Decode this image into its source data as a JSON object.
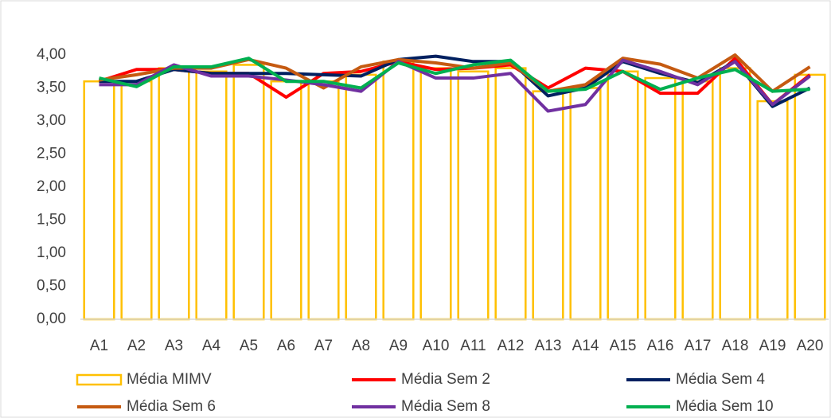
{
  "chart_data": {
    "type": "bar_line",
    "categories": [
      "A1",
      "A2",
      "A3",
      "A4",
      "A5",
      "A6",
      "A7",
      "A8",
      "A9",
      "A10",
      "A11",
      "A12",
      "A13",
      "A14",
      "A15",
      "A16",
      "A17",
      "A18",
      "A19",
      "A20"
    ],
    "bar_series": {
      "name": "Média MIMV",
      "color": "#FFC000",
      "values": [
        3.6,
        3.6,
        3.8,
        3.75,
        3.85,
        3.6,
        3.6,
        3.7,
        3.9,
        3.8,
        3.75,
        3.8,
        3.45,
        3.5,
        3.75,
        3.65,
        3.6,
        3.8,
        3.3,
        3.7
      ]
    },
    "series": [
      {
        "name": "Média Sem 2",
        "color": "#FF0000",
        "values": [
          3.6,
          3.78,
          3.78,
          3.72,
          3.72,
          3.36,
          3.72,
          3.75,
          3.9,
          3.78,
          3.8,
          3.85,
          3.5,
          3.8,
          3.75,
          3.42,
          3.42,
          3.95,
          3.25,
          3.7
        ]
      },
      {
        "name": "Média Sem 4",
        "color": "#002060",
        "values": [
          3.6,
          3.6,
          3.78,
          3.72,
          3.72,
          3.72,
          3.7,
          3.68,
          3.93,
          3.98,
          3.9,
          3.9,
          3.38,
          3.5,
          3.9,
          3.72,
          3.58,
          3.9,
          3.22,
          3.5
        ]
      },
      {
        "name": "Média Sem 6",
        "color": "#C55A11",
        "values": [
          3.62,
          3.7,
          3.8,
          3.8,
          3.93,
          3.8,
          3.5,
          3.82,
          3.93,
          3.88,
          3.8,
          3.88,
          3.45,
          3.55,
          3.95,
          3.86,
          3.65,
          4.0,
          3.45,
          3.82
        ]
      },
      {
        "name": "Média Sem 8",
        "color": "#7030A0",
        "values": [
          3.55,
          3.55,
          3.85,
          3.68,
          3.68,
          3.62,
          3.55,
          3.45,
          3.9,
          3.65,
          3.65,
          3.72,
          3.15,
          3.25,
          3.92,
          3.75,
          3.55,
          3.9,
          3.25,
          3.68
        ]
      },
      {
        "name": "Média Sem 10",
        "color": "#00B050",
        "values": [
          3.65,
          3.52,
          3.82,
          3.82,
          3.95,
          3.6,
          3.6,
          3.5,
          3.88,
          3.72,
          3.85,
          3.92,
          3.45,
          3.48,
          3.75,
          3.48,
          3.65,
          3.78,
          3.45,
          3.48
        ]
      }
    ],
    "ylim": [
      0,
      4
    ],
    "yticks": [
      {
        "value": 0,
        "label": "0,00"
      },
      {
        "value": 0.5,
        "label": "0,50"
      },
      {
        "value": 1,
        "label": "1,00"
      },
      {
        "value": 1.5,
        "label": "1,50"
      },
      {
        "value": 2,
        "label": "2,00"
      },
      {
        "value": 2.5,
        "label": "2,50"
      },
      {
        "value": 3,
        "label": "3,00"
      },
      {
        "value": 3.5,
        "label": "3,50"
      },
      {
        "value": 4,
        "label": "4,00"
      }
    ],
    "grid": false
  }
}
